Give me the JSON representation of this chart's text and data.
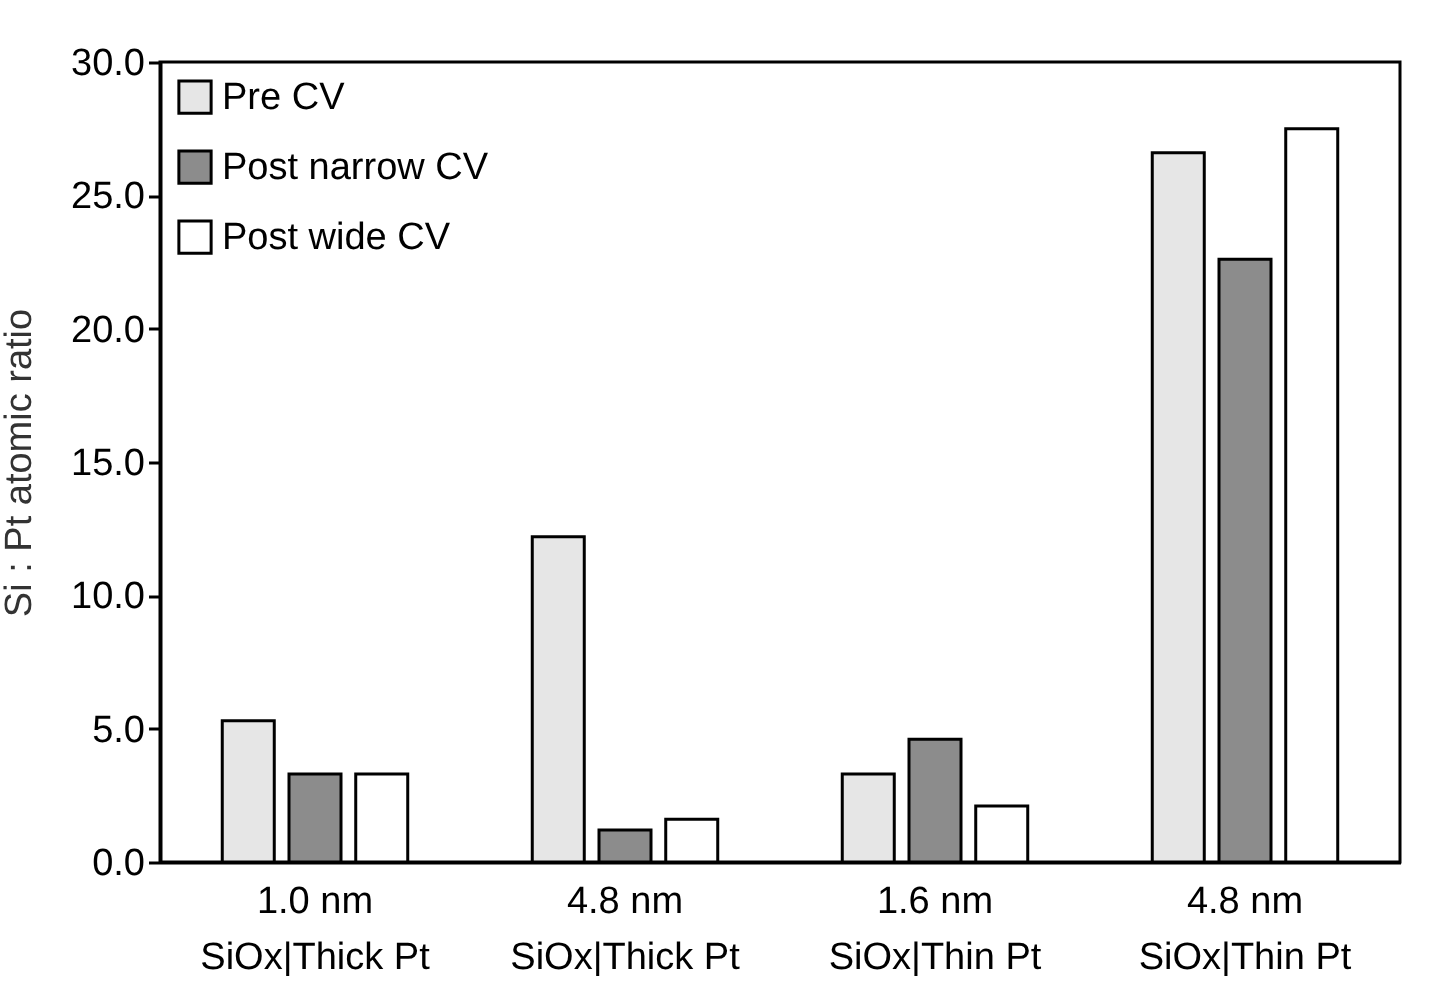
{
  "chart_data": {
    "type": "bar",
    "ylabel": "Si : Pt atomic ratio",
    "categories": [
      "1.0 nm\nSiOx|Thick Pt",
      "4.8 nm\nSiOx|Thick Pt",
      "1.6 nm\nSiOx|Thin Pt",
      "4.8 nm\nSiOx|Thin Pt"
    ],
    "series": [
      {
        "name": "Pre CV",
        "color": "#e6e6e6",
        "values": [
          5.3,
          12.2,
          3.3,
          26.6
        ]
      },
      {
        "name": "Post narrow CV",
        "color": "#8c8c8c",
        "values": [
          3.3,
          1.2,
          4.6,
          22.6
        ]
      },
      {
        "name": "Post wide CV",
        "color": "#ffffff",
        "values": [
          3.3,
          1.6,
          2.1,
          27.5
        ]
      }
    ],
    "ylim": [
      0,
      30
    ],
    "yticks": [
      {
        "value": 0,
        "label": "0.0"
      },
      {
        "value": 5,
        "label": "5.0"
      },
      {
        "value": 10,
        "label": "10.0"
      },
      {
        "value": 15,
        "label": "15.0"
      },
      {
        "value": 20,
        "label": "20.0"
      },
      {
        "value": 25,
        "label": "25.0"
      },
      {
        "value": 30,
        "label": "30.0"
      }
    ],
    "grid": false,
    "legend": "top left"
  }
}
